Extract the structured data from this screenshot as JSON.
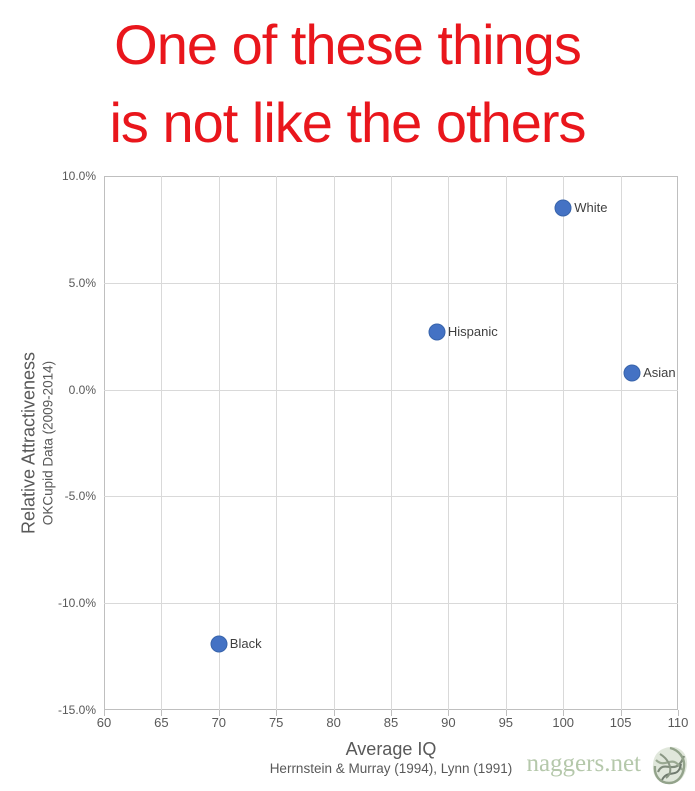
{
  "title": {
    "line1": "One of these things",
    "line2": "is not like the others",
    "color": "#e9161c"
  },
  "chart_data": {
    "type": "scatter",
    "title": "One of these things is not like the others",
    "xlabel": "Average IQ",
    "xsublabel": "Herrnstein & Murray (1994), Lynn (1991)",
    "ylabel": "Relative Attractiveness",
    "ysublabel": "OKCupid Data (2009-2014)",
    "xlim": [
      60,
      110
    ],
    "ylim": [
      -15,
      10
    ],
    "xticks": [
      60,
      65,
      70,
      75,
      80,
      85,
      90,
      95,
      100,
      105,
      110
    ],
    "yticks": [
      10,
      5,
      0,
      -5,
      -10,
      -15
    ],
    "ytick_labels": [
      "10.0%",
      "5.0%",
      "0.0%",
      "-5.0%",
      "-10.0%",
      "-15.0%"
    ],
    "grid": true,
    "legend": "none",
    "marker_color": "#4472c4",
    "points": [
      {
        "label": "White",
        "x": 100,
        "y": 8.5
      },
      {
        "label": "Hispanic",
        "x": 89,
        "y": 2.7
      },
      {
        "label": "Asian",
        "x": 106,
        "y": 0.8
      },
      {
        "label": "Black",
        "x": 70,
        "y": -11.9
      }
    ]
  },
  "watermark": {
    "text": "naggers.net",
    "icon": "scribble-ball-icon",
    "color": "#b5c8ab"
  }
}
